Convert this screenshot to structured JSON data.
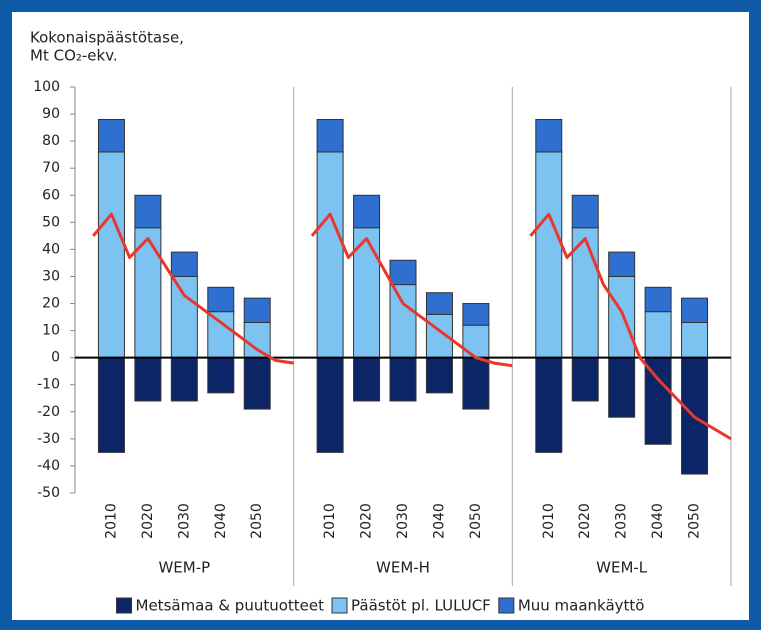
{
  "chart_data": {
    "type": "bar",
    "y_label": [
      "Kokonaispäästötase,",
      "Mt CO₂-ekv."
    ],
    "panels": [
      "WEM-P",
      "WEM-H",
      "WEM-L"
    ],
    "categories": [
      "2010",
      "2020",
      "2030",
      "2040",
      "2050"
    ],
    "xlim": [
      2000,
      2060
    ],
    "ylim": [
      -50,
      100
    ],
    "yticks": [
      -50,
      -40,
      -30,
      -20,
      -10,
      0,
      10,
      20,
      30,
      40,
      50,
      60,
      70,
      80,
      90,
      100
    ],
    "series": [
      {
        "name": "Metsämaa & puutuotteet",
        "color": "#0b2566",
        "values": [
          [
            -35,
            -16,
            -16,
            -13,
            -19
          ],
          [
            -35,
            -16,
            -16,
            -13,
            -19
          ],
          [
            -35,
            -16,
            -22,
            -32,
            -43
          ]
        ]
      },
      {
        "name": "Päästöt pl. LULUCF",
        "color": "#7dc3f2",
        "values": [
          [
            76,
            48,
            30,
            17,
            13
          ],
          [
            76,
            48,
            27,
            16,
            12
          ],
          [
            76,
            48,
            30,
            17,
            13
          ]
        ]
      },
      {
        "name": "Muu maankäyttö",
        "color": "#2f6fd0",
        "values": [
          [
            12,
            12,
            9,
            9,
            9
          ],
          [
            12,
            12,
            9,
            8,
            8
          ],
          [
            12,
            12,
            9,
            9,
            9
          ]
        ]
      }
    ],
    "line": {
      "color": "#e8382e",
      "x": [
        [
          2005,
          2010,
          2015,
          2020,
          2030,
          2040,
          2050,
          2055,
          2060
        ],
        [
          2005,
          2010,
          2015,
          2020,
          2030,
          2040,
          2050,
          2055,
          2060
        ],
        [
          2005,
          2010,
          2015,
          2020,
          2025,
          2030,
          2035,
          2040,
          2045,
          2050,
          2060
        ]
      ],
      "values": [
        [
          45,
          53,
          37,
          44,
          23,
          13,
          3,
          -1,
          -2
        ],
        [
          45,
          53,
          37,
          44,
          20,
          10,
          0,
          -2,
          -3
        ],
        [
          45,
          53,
          37,
          44,
          27,
          17,
          0,
          -8,
          -15,
          -22,
          -30
        ]
      ]
    }
  }
}
